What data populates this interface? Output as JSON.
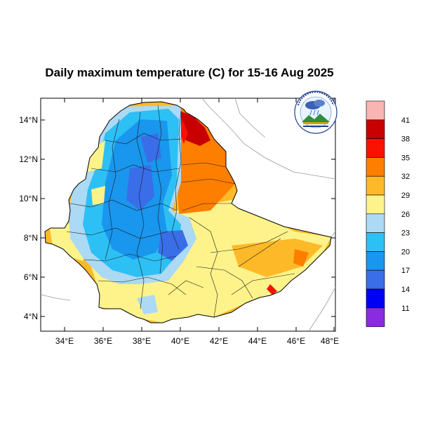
{
  "map": {
    "title": "Daily maximum temperature (C) for 15-16 Aug 2025",
    "lat_labels": [
      "14°N",
      "12°N",
      "10°N",
      "8°N",
      "6°N",
      "4°N"
    ],
    "lon_labels": [
      "34°E",
      "36°E",
      "38°E",
      "40°E",
      "42°E",
      "44°E",
      "46°E",
      "48°E"
    ],
    "lat_range": [
      3.2,
      15.0
    ],
    "lon_range": [
      33.0,
      48.2
    ],
    "logo_icon": "ethiopian-meteorology-institute-seal"
  },
  "colorbar": {
    "ticks": [
      "41",
      "38",
      "35",
      "32",
      "29",
      "26",
      "23",
      "20",
      "17",
      "14",
      "11"
    ],
    "colors": [
      "#f9b4b4",
      "#c90000",
      "#fb1100",
      "#fe7e00",
      "#feb928",
      "#fef38a",
      "#acd9f3",
      "#2dc0f5",
      "#1996ee",
      "#3a6ee8",
      "#0000f5",
      "#8a2be2"
    ]
  }
}
